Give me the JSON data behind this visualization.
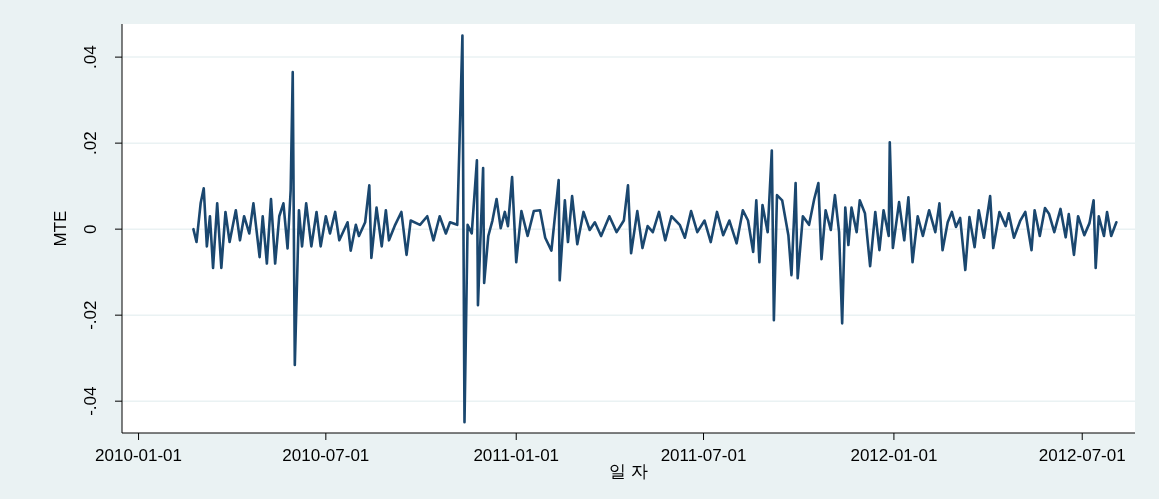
{
  "chart_data": {
    "type": "line",
    "xlabel": "일 자",
    "ylabel": "MTE",
    "grid": "y",
    "xlim": [
      "2009-12-16",
      "2012-08-21"
    ],
    "ylim": [
      -0.0474,
      0.0477
    ],
    "xticks": [
      "2010-01-01",
      "2010-07-01",
      "2011-01-01",
      "2011-07-01",
      "2012-01-01",
      "2012-07-01"
    ],
    "yticks": [
      {
        "value": -0.04,
        "label": "-.04"
      },
      {
        "value": -0.02,
        "label": "-.02"
      },
      0,
      {
        "value": 0.02,
        "label": ".02"
      },
      {
        "value": 0.04,
        "label": ".04"
      }
    ],
    "x": [
      "2010-02-23",
      "2010-02-26",
      "2010-03-02",
      "2010-03-05",
      "2010-03-08",
      "2010-03-11",
      "2010-03-14",
      "2010-03-18",
      "2010-03-22",
      "2010-03-26",
      "2010-03-30",
      "2010-04-05",
      "2010-04-09",
      "2010-04-13",
      "2010-04-18",
      "2010-04-22",
      "2010-04-28",
      "2010-05-01",
      "2010-05-05",
      "2010-05-09",
      "2010-05-13",
      "2010-05-17",
      "2010-05-21",
      "2010-05-25",
      "2010-05-28",
      "2010-05-30",
      "2010-06-01",
      "2010-06-05",
      "2010-06-08",
      "2010-06-12",
      "2010-06-17",
      "2010-06-22",
      "2010-06-26",
      "2010-07-01",
      "2010-07-05",
      "2010-07-10",
      "2010-07-14",
      "2010-07-22",
      "2010-07-25",
      "2010-07-30",
      "2010-08-02",
      "2010-08-08",
      "2010-08-12",
      "2010-08-14",
      "2010-08-19",
      "2010-08-24",
      "2010-08-28",
      "2010-08-31",
      "2010-09-06",
      "2010-09-12",
      "2010-09-17",
      "2010-09-21",
      "2010-09-30",
      "2010-10-07",
      "2010-10-13",
      "2010-10-19",
      "2010-10-25",
      "2010-10-29",
      "2010-11-05",
      "2010-11-10",
      "2010-11-12",
      "2010-11-15",
      "2010-11-19",
      "2010-11-24",
      "2010-11-25",
      "2010-11-30",
      "2010-12-01",
      "2010-12-05",
      "2010-12-09",
      "2010-12-13",
      "2010-12-17",
      "2010-12-21",
      "2010-12-24",
      "2010-12-28",
      "2011-01-01",
      "2011-01-06",
      "2011-01-12",
      "2011-01-18",
      "2011-01-24",
      "2011-01-29",
      "2011-02-04",
      "2011-02-11",
      "2011-02-12",
      "2011-02-17",
      "2011-02-20",
      "2011-02-24",
      "2011-03-01",
      "2011-03-07",
      "2011-03-13",
      "2011-03-18",
      "2011-03-24",
      "2011-04-01",
      "2011-04-08",
      "2011-04-15",
      "2011-04-19",
      "2011-04-22",
      "2011-04-28",
      "2011-05-03",
      "2011-05-08",
      "2011-05-13",
      "2011-05-19",
      "2011-05-25",
      "2011-05-31",
      "2011-06-08",
      "2011-06-13",
      "2011-06-19",
      "2011-06-25",
      "2011-07-02",
      "2011-07-08",
      "2011-07-14",
      "2011-07-20",
      "2011-07-26",
      "2011-08-02",
      "2011-08-08",
      "2011-08-13",
      "2011-08-18",
      "2011-08-21",
      "2011-08-24",
      "2011-08-27",
      "2011-09-01",
      "2011-09-05",
      "2011-09-07",
      "2011-09-10",
      "2011-09-15",
      "2011-09-21",
      "2011-09-24",
      "2011-09-28",
      "2011-09-30",
      "2011-10-05",
      "2011-10-11",
      "2011-10-16",
      "2011-10-20",
      "2011-10-23",
      "2011-10-27",
      "2011-11-01",
      "2011-11-05",
      "2011-11-09",
      "2011-11-12",
      "2011-11-15",
      "2011-11-18",
      "2011-11-21",
      "2011-11-26",
      "2011-11-29",
      "2011-12-04",
      "2011-12-09",
      "2011-12-14",
      "2011-12-18",
      "2011-12-22",
      "2011-12-27",
      "2011-12-28",
      "2011-12-31",
      "2012-01-06",
      "2012-01-11",
      "2012-01-15",
      "2012-01-19",
      "2012-01-24",
      "2012-01-29",
      "2012-02-04",
      "2012-02-10",
      "2012-02-14",
      "2012-02-17",
      "2012-02-22",
      "2012-02-26",
      "2012-03-01",
      "2012-03-05",
      "2012-03-10",
      "2012-03-14",
      "2012-03-19",
      "2012-03-23",
      "2012-03-28",
      "2012-04-03",
      "2012-04-06",
      "2012-04-12",
      "2012-04-18",
      "2012-04-21",
      "2012-04-26",
      "2012-05-02",
      "2012-05-07",
      "2012-05-13",
      "2012-05-16",
      "2012-05-21",
      "2012-05-26",
      "2012-05-30",
      "2012-06-04",
      "2012-06-10",
      "2012-06-15",
      "2012-06-18",
      "2012-06-23",
      "2012-06-27",
      "2012-07-03",
      "2012-07-08",
      "2012-07-12",
      "2012-07-14",
      "2012-07-17",
      "2012-07-22",
      "2012-07-25",
      "2012-07-29",
      "2012-08-03"
    ],
    "series": [
      {
        "color": "#1a476f",
        "values": [
          0.0,
          -0.003,
          0.006,
          0.0095,
          -0.004,
          0.003,
          -0.009,
          0.006,
          -0.009,
          0.004,
          -0.003,
          0.0044,
          -0.0026,
          0.003,
          -0.001,
          0.006,
          -0.0065,
          0.003,
          -0.008,
          0.007,
          -0.008,
          0.003,
          0.006,
          -0.0045,
          0.009,
          0.0365,
          -0.0316,
          0.0044,
          -0.004,
          0.006,
          -0.004,
          0.004,
          -0.004,
          0.003,
          -0.001,
          0.004,
          -0.0026,
          0.0016,
          -0.005,
          0.001,
          -0.0016,
          0.0016,
          0.0102,
          -0.0067,
          0.005,
          -0.004,
          0.0044,
          -0.0026,
          0.001,
          0.004,
          -0.006,
          0.002,
          0.001,
          0.003,
          -0.0026,
          0.003,
          -0.001,
          0.0016,
          0.001,
          0.045,
          -0.0449,
          0.001,
          -0.001,
          0.016,
          -0.0177,
          0.0142,
          -0.0125,
          -0.0016,
          0.002,
          0.007,
          0.0002,
          0.004,
          0.0007,
          0.0121,
          -0.0077,
          0.0042,
          -0.0016,
          0.0042,
          0.0044,
          -0.002,
          -0.005,
          0.0114,
          -0.0119,
          0.0067,
          -0.003,
          0.0077,
          -0.0035,
          0.004,
          -0.0002,
          0.0016,
          -0.0016,
          0.003,
          -0.0007,
          0.002,
          0.0102,
          -0.0056,
          0.0042,
          -0.0044,
          0.0007,
          -0.0007,
          0.004,
          -0.0026,
          0.003,
          0.001,
          -0.002,
          0.0042,
          -0.0007,
          0.002,
          -0.003,
          0.004,
          -0.0014,
          0.002,
          -0.0033,
          0.0044,
          0.002,
          -0.0053,
          0.0067,
          -0.0077,
          0.0056,
          -0.0007,
          0.0183,
          -0.0212,
          0.0079,
          0.0067,
          -0.0014,
          -0.0107,
          0.0107,
          -0.0114,
          0.003,
          0.001,
          0.007,
          0.0107,
          -0.007,
          0.0044,
          -0.0002,
          0.0079,
          -0.0007,
          -0.0219,
          0.005,
          -0.0037,
          0.005,
          -0.0007,
          0.0067,
          0.0037,
          -0.0086,
          0.004,
          -0.0049,
          0.0044,
          -0.0016,
          0.0202,
          -0.0044,
          0.0063,
          -0.0026,
          0.0074,
          -0.0077,
          0.003,
          -0.0016,
          0.0044,
          -0.0007,
          0.006,
          -0.0049,
          0.0016,
          0.004,
          0.0005,
          0.0026,
          -0.0095,
          0.0028,
          -0.0042,
          0.0044,
          -0.002,
          0.0077,
          -0.0044,
          0.004,
          0.0007,
          0.0037,
          -0.002,
          0.0019,
          0.004,
          -0.0049,
          0.0044,
          -0.0016,
          0.0049,
          0.0035,
          -0.0007,
          0.0047,
          -0.0019,
          0.0035,
          -0.006,
          0.003,
          -0.0014,
          0.0014,
          0.0067,
          -0.009,
          0.003,
          -0.0016,
          0.004,
          -0.0016,
          0.0016
        ]
      }
    ]
  }
}
